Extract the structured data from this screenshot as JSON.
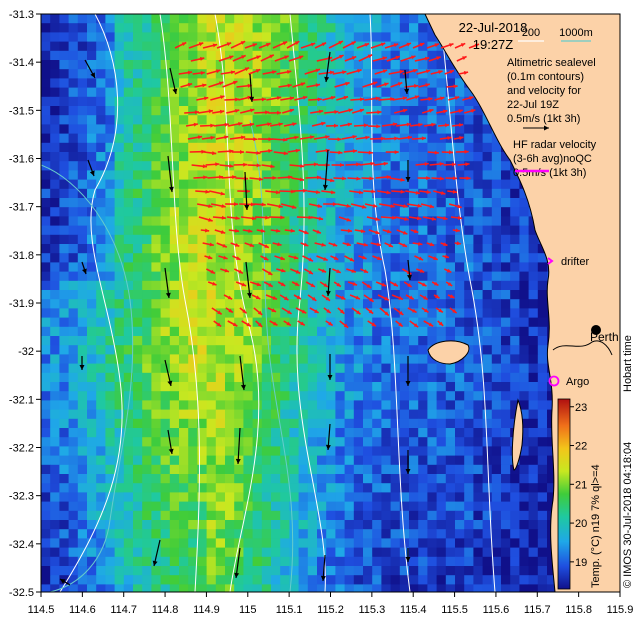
{
  "map": {
    "date": "22-Jul-2018",
    "time": "19:27Z",
    "lon_range": [
      114.5,
      115.9
    ],
    "lat_range": [
      -32.5,
      -31.3
    ],
    "x_ticks": [
      "114.5",
      "114.6",
      "114.7",
      "114.8",
      "114.9",
      "115",
      "115.1",
      "115.2",
      "115.3",
      "115.4",
      "115.5",
      "115.6",
      "115.7",
      "115.8",
      "115.9"
    ],
    "y_ticks": [
      "-31.3",
      "-31.4",
      "-31.5",
      "-31.6",
      "-31.7",
      "-31.8",
      "-31.9",
      "-32",
      "-32.1",
      "-32.2",
      "-32.3",
      "-32.4",
      "-32.5"
    ],
    "bathymetry_legend": {
      "label_200": "200",
      "label_1000": "1000m",
      "color_200": "#ffffff",
      "color_1000": "#66cccc"
    },
    "altimetry_legend": {
      "lines": [
        "Altimetric sealevel",
        "(0.1m contours)",
        "and velocity for",
        "22-Jul 19Z"
      ],
      "scale": "0.5m/s (1kt 3h)"
    },
    "hf_radar_legend": {
      "lines": [
        "HF radar velocity",
        "(3-6h avg)noQC"
      ],
      "scale": "0.5m/s (1kt 3h)",
      "color": "#ff00ff"
    },
    "labels": {
      "drifter": "drifter",
      "argo": "Argo",
      "perth": "Perth",
      "hobart_time": "Hobart time",
      "credit": "© IMOS 30-Jul-2018 04:18:04"
    },
    "colorbar": {
      "label": "Temp. (°C) n19 7% ql>=4",
      "ticks": [
        "19",
        "20",
        "21",
        "22",
        "23"
      ],
      "range": [
        18.3,
        23.2
      ]
    },
    "colors": {
      "land": "#fcd2a8",
      "hf_arrow": "#ff1a1a",
      "alt_arrow": "#000000",
      "drifter": "#ff00ff",
      "argo": "#ff00ff"
    }
  }
}
